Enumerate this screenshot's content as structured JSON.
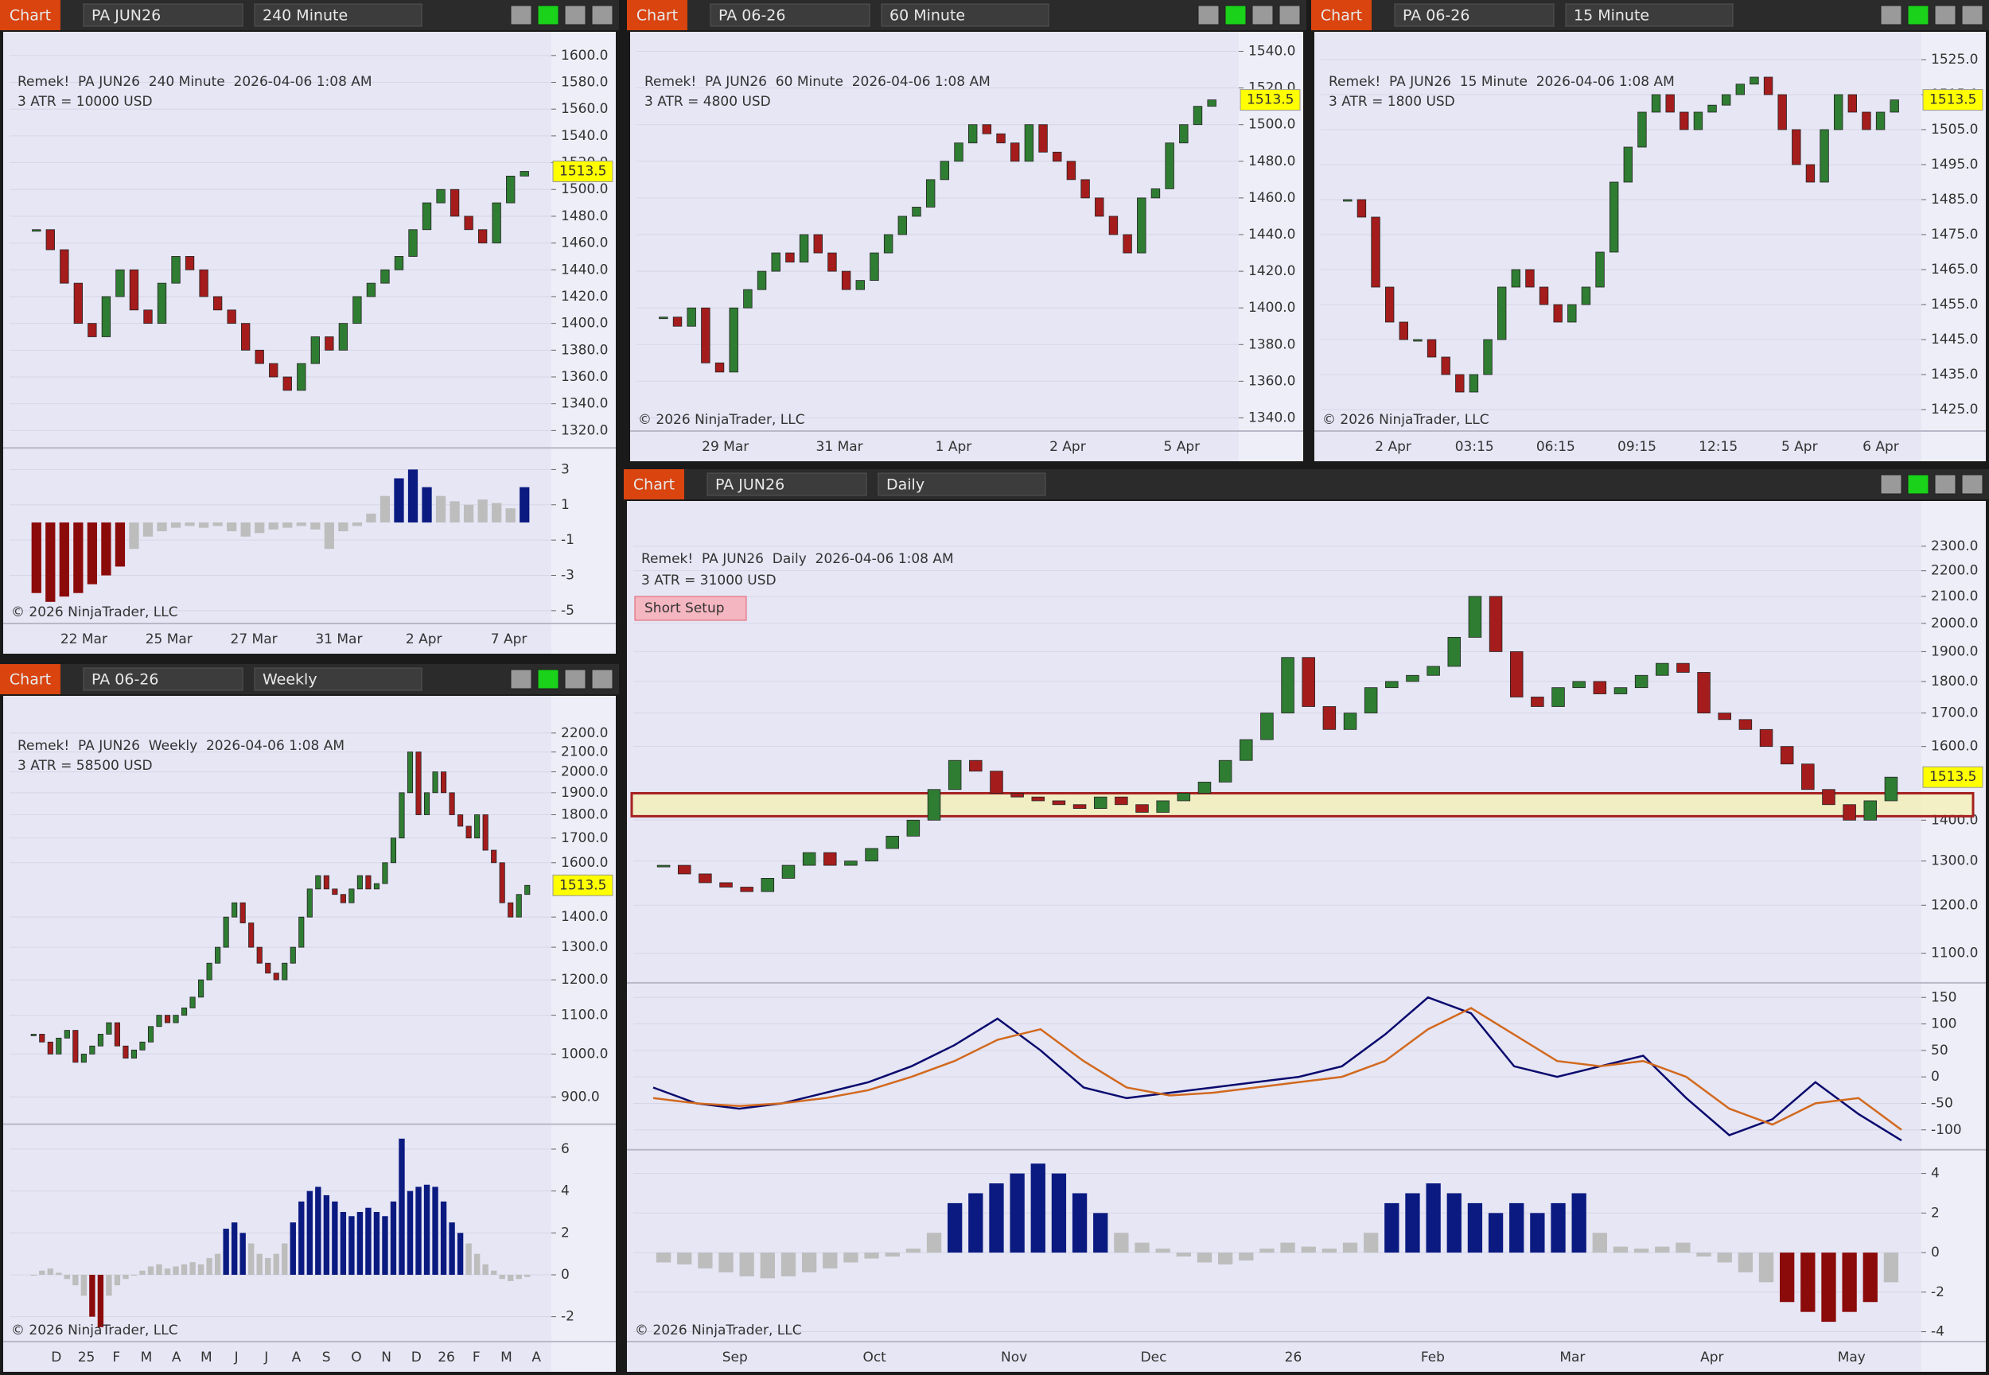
{
  "panels": [
    {
      "tab": "Chart",
      "instrument": "PA JUN26",
      "interval": "240 Minute",
      "title": "Remek!  PA JUN26  240 Minute  2026-04-06 1:08 AM",
      "atr": "3 ATR = 10000 USD",
      "copyright": "© 2026 NinjaTrader, LLC",
      "last_price": 1513.5,
      "log_scale": false,
      "ylim": [
        1310,
        1610
      ],
      "yticks": [
        {
          "value": 1600,
          "label": "1600.0"
        },
        {
          "value": 1580,
          "label": "1580.0"
        },
        {
          "value": 1560,
          "label": "1560.0"
        },
        {
          "value": 1540,
          "label": "1540.0"
        },
        {
          "value": 1520,
          "label": "1520.0"
        },
        {
          "value": 1500,
          "label": "1500.0"
        },
        {
          "value": 1480,
          "label": "1480.0"
        },
        {
          "value": 1460,
          "label": "1460.0"
        },
        {
          "value": 1440,
          "label": "1440.0"
        },
        {
          "value": 1420,
          "label": "1420.0"
        },
        {
          "value": 1400,
          "label": "1400.0"
        },
        {
          "value": 1380,
          "label": "1380.0"
        },
        {
          "value": 1360,
          "label": "1360.0"
        },
        {
          "value": 1340,
          "label": "1340.0"
        },
        {
          "value": 1320,
          "label": "1320.0"
        }
      ],
      "xlabels": [
        "22 Mar",
        "25 Mar",
        "27 Mar",
        "31 Mar",
        "2 Apr",
        "7 Apr"
      ],
      "closes": [
        1470,
        1455,
        1430,
        1400,
        1390,
        1420,
        1440,
        1410,
        1400,
        1430,
        1450,
        1440,
        1420,
        1410,
        1400,
        1380,
        1370,
        1360,
        1350,
        1370,
        1390,
        1380,
        1400,
        1420,
        1430,
        1440,
        1450,
        1470,
        1490,
        1500,
        1480,
        1470,
        1460,
        1490,
        1510,
        1513.5
      ],
      "indicator": {
        "ylim": [
          -5.5,
          4
        ],
        "yticks": [
          3,
          1,
          -1,
          -3,
          -5
        ],
        "values": [
          -4,
          -4.5,
          -4.2,
          -4,
          -3.5,
          -3,
          -2.5,
          -1.5,
          -0.8,
          -0.5,
          -0.3,
          -0.2,
          -0.3,
          -0.2,
          -0.5,
          -0.8,
          -0.6,
          -0.4,
          -0.3,
          -0.2,
          -0.4,
          -1.5,
          -0.5,
          -0.2,
          0.5,
          1.5,
          2.5,
          3,
          2,
          1.5,
          1.2,
          1,
          1.3,
          1.1,
          0.8,
          2
        ]
      }
    },
    {
      "tab": "Chart",
      "instrument": "PA 06-26",
      "interval": "60 Minute",
      "title": "Remek!  PA JUN26  60 Minute  2026-04-06 1:08 AM",
      "atr": "3 ATR = 4800 USD",
      "copyright": "© 2026 NinjaTrader, LLC",
      "last_price": 1513.5,
      "log_scale": false,
      "ylim": [
        1335,
        1545
      ],
      "yticks": [
        {
          "value": 1540,
          "label": "1540.0"
        },
        {
          "value": 1520,
          "label": "1520.0"
        },
        {
          "value": 1500,
          "label": "1500.0"
        },
        {
          "value": 1480,
          "label": "1480.0"
        },
        {
          "value": 1460,
          "label": "1460.0"
        },
        {
          "value": 1440,
          "label": "1440.0"
        },
        {
          "value": 1420,
          "label": "1420.0"
        },
        {
          "value": 1400,
          "label": "1400.0"
        },
        {
          "value": 1380,
          "label": "1380.0"
        },
        {
          "value": 1360,
          "label": "1360.0"
        },
        {
          "value": 1340,
          "label": "1340.0"
        }
      ],
      "xlabels": [
        "29 Mar",
        "31 Mar",
        "1 Apr",
        "2 Apr",
        "5 Apr"
      ],
      "closes": [
        1395,
        1390,
        1400,
        1370,
        1365,
        1400,
        1410,
        1420,
        1430,
        1425,
        1440,
        1430,
        1420,
        1410,
        1415,
        1430,
        1440,
        1450,
        1455,
        1470,
        1480,
        1490,
        1500,
        1495,
        1490,
        1480,
        1500,
        1485,
        1480,
        1470,
        1460,
        1450,
        1440,
        1430,
        1460,
        1465,
        1490,
        1500,
        1510,
        1513.5
      ]
    },
    {
      "tab": "Chart",
      "instrument": "PA 06-26",
      "interval": "15 Minute",
      "title": "Remek!  PA JUN26  15 Minute  2026-04-06 1:08 AM",
      "atr": "3 ATR = 1800 USD",
      "copyright": "© 2026 NinjaTrader, LLC",
      "last_price": 1513.5,
      "log_scale": false,
      "ylim": [
        1420,
        1530
      ],
      "yticks": [
        {
          "value": 1525,
          "label": "1525.0"
        },
        {
          "value": 1515,
          "label": "1515.0"
        },
        {
          "value": 1505,
          "label": "1505.0"
        },
        {
          "value": 1495,
          "label": "1495.0"
        },
        {
          "value": 1485,
          "label": "1485.0"
        },
        {
          "value": 1475,
          "label": "1475.0"
        },
        {
          "value": 1465,
          "label": "1465.0"
        },
        {
          "value": 1455,
          "label": "1455.0"
        },
        {
          "value": 1445,
          "label": "1445.0"
        },
        {
          "value": 1435,
          "label": "1435.0"
        },
        {
          "value": 1425,
          "label": "1425.0"
        }
      ],
      "xlabels": [
        "2 Apr",
        "03:15",
        "06:15",
        "09:15",
        "12:15",
        "5 Apr",
        "6 Apr"
      ],
      "closes": [
        1485,
        1480,
        1460,
        1450,
        1445,
        1445,
        1440,
        1435,
        1430,
        1435,
        1445,
        1460,
        1465,
        1460,
        1455,
        1450,
        1455,
        1460,
        1470,
        1490,
        1500,
        1510,
        1515,
        1510,
        1505,
        1510,
        1512,
        1515,
        1518,
        1520,
        1515,
        1505,
        1495,
        1490,
        1505,
        1515,
        1510,
        1505,
        1510,
        1513.5
      ]
    },
    {
      "tab": "Chart",
      "instrument": "PA 06-26",
      "interval": "Weekly",
      "title": "Remek!  PA JUN26  Weekly  2026-04-06 1:08 AM",
      "atr": "3 ATR = 58500 USD",
      "copyright": "© 2026 NinjaTrader, LLC",
      "last_price": 1513.5,
      "log_scale": true,
      "ylim": [
        850,
        2350
      ],
      "yticks": [
        {
          "value": 2200,
          "label": "2200.0"
        },
        {
          "value": 2100,
          "label": "2100.0"
        },
        {
          "value": 2000,
          "label": "2000.0"
        },
        {
          "value": 1900,
          "label": "1900.0"
        },
        {
          "value": 1800,
          "label": "1800.0"
        },
        {
          "value": 1700,
          "label": "1700.0"
        },
        {
          "value": 1600,
          "label": "1600.0"
        },
        {
          "value": 1400,
          "label": "1400.0"
        },
        {
          "value": 1300,
          "label": "1300.0"
        },
        {
          "value": 1200,
          "label": "1200.0"
        },
        {
          "value": 1100,
          "label": "1100.0"
        },
        {
          "value": 1000,
          "label": "1000.0"
        },
        {
          "value": 900,
          "label": "900.0"
        }
      ],
      "xlabels": [
        "D",
        "25",
        "F",
        "M",
        "A",
        "M",
        "J",
        "J",
        "A",
        "S",
        "O",
        "N",
        "D",
        "26",
        "F",
        "M",
        "A"
      ],
      "closes": [
        1050,
        1030,
        1000,
        1040,
        1060,
        980,
        1000,
        1020,
        1050,
        1080,
        1020,
        990,
        1010,
        1030,
        1070,
        1100,
        1080,
        1100,
        1120,
        1150,
        1200,
        1250,
        1300,
        1400,
        1450,
        1380,
        1300,
        1250,
        1220,
        1200,
        1250,
        1300,
        1400,
        1500,
        1550,
        1500,
        1480,
        1450,
        1500,
        1550,
        1500,
        1520,
        1600,
        1700,
        1900,
        2100,
        1800,
        1900,
        2000,
        1900,
        1800,
        1750,
        1700,
        1800,
        1650,
        1600,
        1450,
        1400,
        1480,
        1513.5
      ],
      "indicator": {
        "ylim": [
          -3,
          7
        ],
        "yticks": [
          6,
          4,
          2,
          0,
          -2
        ],
        "values": [
          0,
          0.2,
          0.3,
          0.1,
          -0.2,
          -0.5,
          -1,
          -2,
          -2.5,
          -1,
          -0.5,
          -0.2,
          0,
          0.2,
          0.4,
          0.5,
          0.3,
          0.4,
          0.5,
          0.6,
          0.5,
          0.8,
          1,
          2.2,
          2.5,
          2,
          1.5,
          1,
          0.8,
          1,
          1.5,
          2.5,
          3.5,
          4,
          4.2,
          3.8,
          3.5,
          3,
          2.8,
          3,
          3.2,
          3,
          2.8,
          3.5,
          6.5,
          4,
          4.2,
          4.3,
          4.2,
          3.5,
          2.5,
          2,
          1.5,
          1,
          0.5,
          0.2,
          -0.2,
          -0.3,
          -0.2,
          -0.1
        ]
      }
    },
    {
      "tab": "Chart",
      "instrument": "PA JUN26",
      "interval": "Daily",
      "title": "Remek!  PA JUN26  Daily  2026-04-06 1:08 AM",
      "atr": "3 ATR = 31000 USD",
      "short_setup": "Short Setup",
      "copyright": "© 2026 NinjaTrader, LLC",
      "last_price": 1513.5,
      "log_scale": true,
      "ylim": [
        1050,
        2450
      ],
      "yticks": [
        {
          "value": 2300,
          "label": "2300.0"
        },
        {
          "value": 2200,
          "label": "2200.0"
        },
        {
          "value": 2100,
          "label": "2100.0"
        },
        {
          "value": 2000,
          "label": "2000.0"
        },
        {
          "value": 1900,
          "label": "1900.0"
        },
        {
          "value": 1800,
          "label": "1800.0"
        },
        {
          "value": 1700,
          "label": "1700.0"
        },
        {
          "value": 1600,
          "label": "1600.0"
        },
        {
          "value": 1400,
          "label": "1400.0"
        },
        {
          "value": 1300,
          "label": "1300.0"
        },
        {
          "value": 1200,
          "label": "1200.0"
        },
        {
          "value": 1100,
          "label": "1100.0"
        }
      ],
      "zone": [
        1410,
        1470
      ],
      "xlabels": [
        "Sep",
        "Oct",
        "Nov",
        "Dec",
        "26",
        "Feb",
        "Mar",
        "Apr",
        "May"
      ],
      "closes": [
        1290,
        1270,
        1250,
        1240,
        1230,
        1260,
        1290,
        1320,
        1290,
        1300,
        1330,
        1360,
        1400,
        1480,
        1560,
        1530,
        1470,
        1460,
        1450,
        1440,
        1430,
        1460,
        1440,
        1420,
        1450,
        1470,
        1500,
        1560,
        1620,
        1700,
        1880,
        1720,
        1650,
        1700,
        1780,
        1800,
        1820,
        1850,
        1950,
        2100,
        1900,
        1750,
        1720,
        1780,
        1800,
        1760,
        1780,
        1820,
        1860,
        1830,
        1700,
        1680,
        1650,
        1600,
        1550,
        1480,
        1440,
        1400,
        1450,
        1513.5
      ],
      "oscillator": {
        "ylim": [
          -130,
          170
        ],
        "yticks": [
          150,
          100,
          50,
          0,
          -50,
          -100
        ],
        "series": [
          {
            "color": "#0a0a6e",
            "values": [
              -20,
              -50,
              -60,
              -50,
              -30,
              -10,
              20,
              60,
              110,
              50,
              -20,
              -40,
              -30,
              -20,
              -10,
              0,
              20,
              80,
              150,
              120,
              20,
              0,
              20,
              40,
              -40,
              -110,
              -80,
              -10,
              -70,
              -120
            ]
          },
          {
            "color": "#d2691e",
            "values": [
              -40,
              -50,
              -55,
              -50,
              -40,
              -25,
              0,
              30,
              70,
              90,
              30,
              -20,
              -35,
              -30,
              -20,
              -10,
              0,
              30,
              90,
              130,
              80,
              30,
              20,
              30,
              0,
              -60,
              -90,
              -50,
              -40,
              -100
            ]
          }
        ]
      },
      "indicator": {
        "ylim": [
          -4.3,
          5
        ],
        "yticks": [
          4,
          2,
          0,
          -2,
          -4
        ],
        "values": [
          -0.5,
          -0.6,
          -0.8,
          -1,
          -1.2,
          -1.3,
          -1.2,
          -1,
          -0.8,
          -0.5,
          -0.3,
          -0.2,
          0.2,
          1,
          2.5,
          3,
          3.5,
          4,
          4.5,
          4,
          3,
          2,
          1,
          0.5,
          0.2,
          -0.2,
          -0.5,
          -0.6,
          -0.4,
          0.2,
          0.5,
          0.3,
          0.2,
          0.5,
          1,
          2.5,
          3,
          3.5,
          3,
          2.5,
          2,
          2.5,
          2,
          2.5,
          3,
          1,
          0.3,
          0.2,
          0.3,
          0.5,
          -0.2,
          -0.5,
          -1,
          -1.5,
          -2.5,
          -3,
          -3.5,
          -3,
          -2.5,
          -1.5
        ]
      }
    }
  ]
}
